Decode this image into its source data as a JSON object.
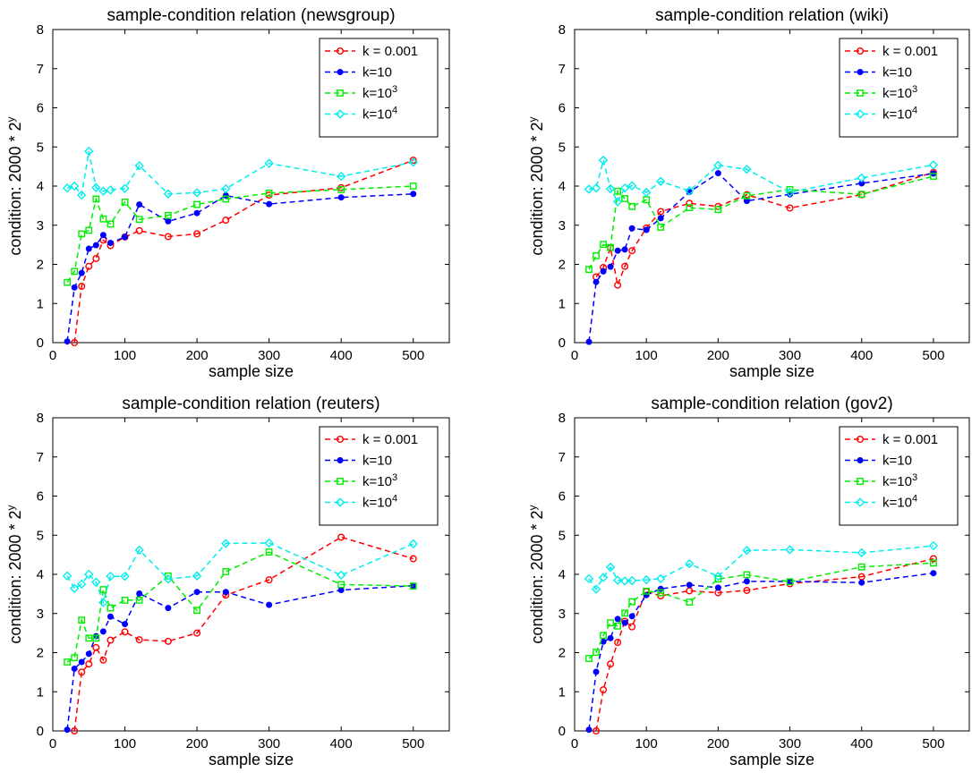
{
  "figure": {
    "colors": {
      "k001": "#ff0000",
      "k10": "#0000ff",
      "k1e3": "#00ee00",
      "k1e4": "#00eeee"
    }
  },
  "chart_data": [
    {
      "type": "line",
      "title": "sample-condition relation (newsgroup)",
      "xlabel": "sample size",
      "ylabel_prefix": "condition: 2000 * 2",
      "ylabel_sup": "y",
      "xlim": [
        0,
        550
      ],
      "ylim": [
        0,
        8
      ],
      "xticks": [
        0,
        100,
        200,
        300,
        400,
        500
      ],
      "yticks": [
        0,
        1,
        2,
        3,
        4,
        5,
        6,
        7,
        8
      ],
      "grid": false,
      "legend_position": "top-right",
      "series": [
        {
          "name": "k = 0.001",
          "name_sup": "",
          "color": "#ff0000",
          "marker": "circle",
          "x": [
            30,
            40,
            50,
            60,
            70,
            80,
            100,
            120,
            160,
            200,
            240,
            300,
            400,
            500
          ],
          "y": [
            0,
            1.44,
            1.95,
            2.15,
            2.62,
            2.48,
            2.7,
            2.86,
            2.71,
            2.78,
            3.13,
            3.77,
            3.96,
            4.66
          ]
        },
        {
          "name": "k=10",
          "name_sup": "",
          "color": "#0000ff",
          "marker": "dot",
          "x": [
            20,
            30,
            40,
            50,
            60,
            70,
            80,
            100,
            120,
            160,
            200,
            240,
            300,
            400,
            500
          ],
          "y": [
            0.03,
            1.41,
            1.78,
            2.4,
            2.49,
            2.75,
            2.55,
            2.7,
            3.53,
            3.1,
            3.31,
            3.76,
            3.54,
            3.71,
            3.8
          ]
        },
        {
          "name": "k=10",
          "name_sup": "3",
          "color": "#00ee00",
          "marker": "square",
          "x": [
            20,
            30,
            40,
            50,
            60,
            70,
            80,
            100,
            120,
            160,
            200,
            240,
            300,
            400,
            500
          ],
          "y": [
            1.54,
            1.82,
            2.78,
            2.87,
            3.67,
            3.16,
            3.03,
            3.59,
            3.15,
            3.25,
            3.53,
            3.67,
            3.82,
            3.91,
            4.0
          ]
        },
        {
          "name": "k=10",
          "name_sup": "4",
          "color": "#00eeee",
          "marker": "diamond",
          "x": [
            20,
            30,
            40,
            50,
            60,
            70,
            80,
            100,
            120,
            160,
            200,
            240,
            300,
            400,
            500
          ],
          "y": [
            3.95,
            4.0,
            3.77,
            4.89,
            3.96,
            3.87,
            3.9,
            3.94,
            4.52,
            3.8,
            3.83,
            3.93,
            4.58,
            4.25,
            4.61
          ]
        }
      ]
    },
    {
      "type": "line",
      "title": "sample-condition relation (wiki)",
      "xlabel": "sample size",
      "ylabel_prefix": "condition: 2000 * 2",
      "ylabel_sup": "y",
      "xlim": [
        0,
        550
      ],
      "ylim": [
        0,
        8
      ],
      "xticks": [
        0,
        100,
        200,
        300,
        400,
        500
      ],
      "yticks": [
        0,
        1,
        2,
        3,
        4,
        5,
        6,
        7,
        8
      ],
      "grid": false,
      "legend_position": "top-right",
      "series": [
        {
          "name": "k = 0.001",
          "name_sup": "",
          "color": "#ff0000",
          "marker": "circle",
          "x": [
            30,
            40,
            50,
            60,
            70,
            80,
            100,
            120,
            160,
            200,
            240,
            300,
            400,
            500
          ],
          "y": [
            1.68,
            1.92,
            2.42,
            1.47,
            1.95,
            2.35,
            2.93,
            3.35,
            3.56,
            3.48,
            3.78,
            3.44,
            3.78,
            4.35
          ]
        },
        {
          "name": "k=10",
          "name_sup": "",
          "color": "#0000ff",
          "marker": "dot",
          "x": [
            20,
            30,
            40,
            50,
            60,
            70,
            80,
            100,
            120,
            160,
            200,
            240,
            300,
            400,
            500
          ],
          "y": [
            0.02,
            1.55,
            1.82,
            1.94,
            2.35,
            2.38,
            2.92,
            2.88,
            3.18,
            3.85,
            4.33,
            3.62,
            3.79,
            4.07,
            4.32
          ]
        },
        {
          "name": "k=10",
          "name_sup": "3",
          "color": "#00ee00",
          "marker": "square",
          "x": [
            20,
            30,
            40,
            50,
            60,
            70,
            80,
            100,
            120,
            160,
            200,
            240,
            300,
            400,
            500
          ],
          "y": [
            1.87,
            2.22,
            2.51,
            2.43,
            3.87,
            3.68,
            3.48,
            3.65,
            2.95,
            3.45,
            3.4,
            3.75,
            3.91,
            3.79,
            4.25
          ]
        },
        {
          "name": "k=10",
          "name_sup": "4",
          "color": "#00eeee",
          "marker": "diamond",
          "x": [
            20,
            30,
            40,
            50,
            60,
            70,
            80,
            100,
            120,
            160,
            200,
            240,
            300,
            400,
            500
          ],
          "y": [
            3.92,
            3.95,
            4.66,
            3.93,
            3.6,
            3.95,
            4.01,
            3.84,
            4.12,
            3.88,
            4.53,
            4.43,
            3.84,
            4.21,
            4.54
          ]
        }
      ]
    },
    {
      "type": "line",
      "title": "sample-condition relation (reuters)",
      "xlabel": "sample size",
      "ylabel_prefix": "condition: 2000 * 2",
      "ylabel_sup": "y",
      "xlim": [
        0,
        550
      ],
      "ylim": [
        0,
        8
      ],
      "xticks": [
        0,
        100,
        200,
        300,
        400,
        500
      ],
      "yticks": [
        0,
        1,
        2,
        3,
        4,
        5,
        6,
        7,
        8
      ],
      "grid": false,
      "legend_position": "top-right",
      "series": [
        {
          "name": "k = 0.001",
          "name_sup": "",
          "color": "#ff0000",
          "marker": "circle",
          "x": [
            30,
            40,
            50,
            60,
            70,
            80,
            100,
            120,
            160,
            200,
            240,
            300,
            400,
            500
          ],
          "y": [
            0,
            1.5,
            1.71,
            2.13,
            1.81,
            2.32,
            2.53,
            2.33,
            2.29,
            2.5,
            3.47,
            3.86,
            4.95,
            4.4
          ]
        },
        {
          "name": "k=10",
          "name_sup": "",
          "color": "#0000ff",
          "marker": "dot",
          "x": [
            20,
            30,
            40,
            50,
            60,
            70,
            80,
            100,
            120,
            160,
            200,
            240,
            300,
            400,
            500
          ],
          "y": [
            0.03,
            1.59,
            1.76,
            1.97,
            2.42,
            2.54,
            2.92,
            2.73,
            3.51,
            3.14,
            3.55,
            3.55,
            3.22,
            3.6,
            3.71
          ]
        },
        {
          "name": "k=10",
          "name_sup": "3",
          "color": "#00ee00",
          "marker": "square",
          "x": [
            20,
            30,
            40,
            50,
            60,
            70,
            80,
            100,
            120,
            160,
            200,
            240,
            300,
            400,
            500
          ],
          "y": [
            1.76,
            1.87,
            2.83,
            2.37,
            2.37,
            3.61,
            3.14,
            3.34,
            3.34,
            3.96,
            3.08,
            4.07,
            4.57,
            3.74,
            3.7
          ]
        },
        {
          "name": "k=10",
          "name_sup": "4",
          "color": "#00eeee",
          "marker": "diamond",
          "x": [
            20,
            30,
            40,
            50,
            60,
            70,
            80,
            100,
            120,
            160,
            200,
            240,
            300,
            400,
            500
          ],
          "y": [
            3.96,
            3.64,
            3.75,
            4.0,
            3.8,
            3.28,
            3.95,
            3.95,
            4.62,
            3.88,
            3.96,
            4.79,
            4.8,
            3.98,
            4.78
          ]
        }
      ]
    },
    {
      "type": "line",
      "title": "sample-condition relation (gov2)",
      "xlabel": "sample size",
      "ylabel_prefix": "condition: 2000 * 2",
      "ylabel_sup": "y",
      "xlim": [
        0,
        550
      ],
      "ylim": [
        0,
        8
      ],
      "xticks": [
        0,
        100,
        200,
        300,
        400,
        500
      ],
      "yticks": [
        0,
        1,
        2,
        3,
        4,
        5,
        6,
        7,
        8
      ],
      "grid": false,
      "legend_position": "top-right",
      "series": [
        {
          "name": "k = 0.001",
          "name_sup": "",
          "color": "#ff0000",
          "marker": "circle",
          "x": [
            30,
            40,
            50,
            60,
            70,
            80,
            100,
            120,
            160,
            200,
            240,
            300,
            400,
            500
          ],
          "y": [
            0,
            1.05,
            1.71,
            2.26,
            2.8,
            2.66,
            3.56,
            3.45,
            3.58,
            3.53,
            3.59,
            3.76,
            3.94,
            4.4
          ]
        },
        {
          "name": "k=10",
          "name_sup": "",
          "color": "#0000ff",
          "marker": "dot",
          "x": [
            20,
            30,
            40,
            50,
            60,
            70,
            80,
            100,
            120,
            160,
            200,
            240,
            300,
            400,
            500
          ],
          "y": [
            0.03,
            1.51,
            2.28,
            2.37,
            2.86,
            2.76,
            2.93,
            3.47,
            3.63,
            3.73,
            3.66,
            3.82,
            3.82,
            3.79,
            4.03
          ]
        },
        {
          "name": "k=10",
          "name_sup": "3",
          "color": "#00ee00",
          "marker": "square",
          "x": [
            20,
            30,
            40,
            50,
            60,
            70,
            80,
            100,
            120,
            160,
            200,
            240,
            300,
            400,
            500
          ],
          "y": [
            1.85,
            2.01,
            2.44,
            2.76,
            2.68,
            3.01,
            3.3,
            3.57,
            3.53,
            3.29,
            3.88,
            3.99,
            3.81,
            4.19,
            4.29
          ]
        },
        {
          "name": "k=10",
          "name_sup": "4",
          "color": "#00eeee",
          "marker": "diamond",
          "x": [
            20,
            30,
            40,
            50,
            60,
            70,
            80,
            100,
            120,
            160,
            200,
            240,
            300,
            400,
            500
          ],
          "y": [
            3.89,
            3.62,
            3.92,
            4.18,
            3.85,
            3.83,
            3.84,
            3.86,
            3.89,
            4.27,
            3.95,
            4.61,
            4.63,
            4.55,
            4.73
          ]
        }
      ]
    }
  ]
}
